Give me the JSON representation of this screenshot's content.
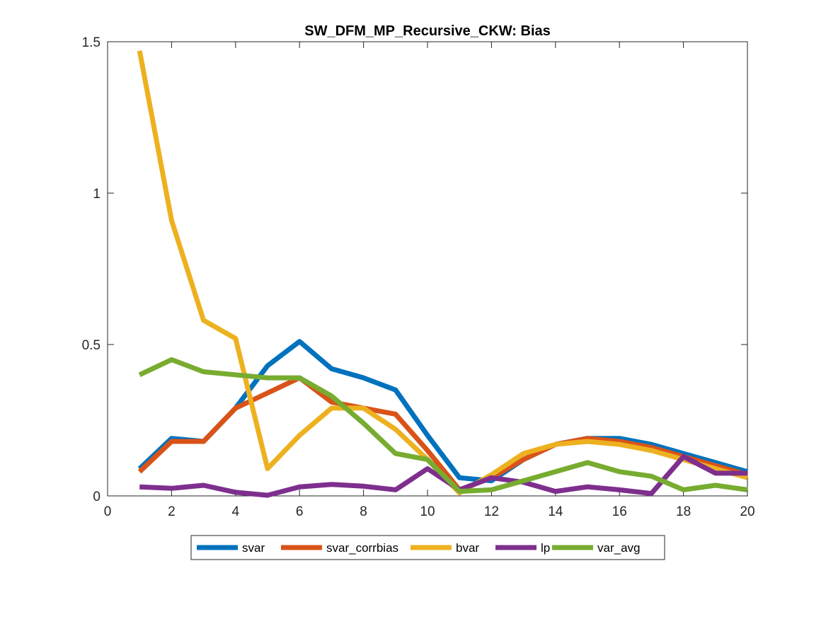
{
  "chart_data": {
    "type": "line",
    "title": "SW_DFM_MP_Recursive_CKW: Bias",
    "xlabel": "",
    "ylabel": "",
    "xlim": [
      0,
      20
    ],
    "ylim": [
      0,
      1.5
    ],
    "xticks": [
      "0",
      "2",
      "4",
      "6",
      "8",
      "10",
      "12",
      "14",
      "16",
      "18",
      "20"
    ],
    "yticks": [
      "0",
      "0.5",
      "1",
      "1.5"
    ],
    "grid": false,
    "legend_position": "bottom-outside",
    "x": [
      1,
      2,
      3,
      4,
      5,
      6,
      7,
      8,
      9,
      10,
      11,
      12,
      13,
      14,
      15,
      16,
      17,
      18,
      19,
      20
    ],
    "series": [
      {
        "name": "svar",
        "color": "#0072BD",
        "values": [
          0.09,
          0.19,
          0.18,
          0.29,
          0.43,
          0.51,
          0.42,
          0.39,
          0.35,
          0.2,
          0.06,
          0.05,
          0.12,
          0.17,
          0.19,
          0.19,
          0.17,
          0.14,
          0.11,
          0.08
        ]
      },
      {
        "name": "svar_corrbias",
        "color": "#D95319",
        "values": [
          0.08,
          0.18,
          0.18,
          0.29,
          0.34,
          0.39,
          0.31,
          0.29,
          0.27,
          0.15,
          0.02,
          0.06,
          0.12,
          0.17,
          0.19,
          0.18,
          0.16,
          0.13,
          0.1,
          0.07
        ]
      },
      {
        "name": "bvar",
        "color": "#EDB120",
        "values": [
          1.47,
          0.91,
          0.58,
          0.52,
          0.09,
          0.2,
          0.29,
          0.29,
          0.22,
          0.12,
          0.01,
          0.07,
          0.14,
          0.17,
          0.18,
          0.17,
          0.15,
          0.12,
          0.09,
          0.06
        ]
      },
      {
        "name": "lp",
        "color": "#7E2F8E",
        "values": [
          0.03,
          0.025,
          0.035,
          0.012,
          0.002,
          0.03,
          0.038,
          0.032,
          0.02,
          0.09,
          0.02,
          0.06,
          0.045,
          0.015,
          0.03,
          0.02,
          0.008,
          0.13,
          0.075,
          0.075
        ]
      },
      {
        "name": "var_avg",
        "color": "#77AC30",
        "values": [
          0.4,
          0.45,
          0.41,
          0.4,
          0.39,
          0.39,
          0.33,
          0.24,
          0.14,
          0.12,
          0.015,
          0.02,
          0.05,
          0.08,
          0.11,
          0.08,
          0.065,
          0.02,
          0.035,
          0.02
        ]
      }
    ]
  }
}
